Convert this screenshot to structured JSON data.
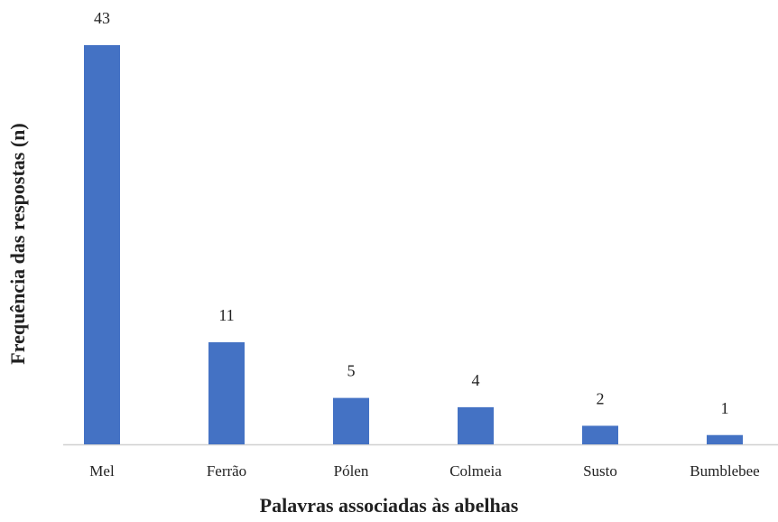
{
  "chart_data": {
    "type": "bar",
    "x_label": "Palavras associadas às abelhas",
    "y_label": "Frequência das respostas (n)",
    "categories": [
      "Mel",
      "Ferrão",
      "Pólen",
      "Colmeia",
      "Susto",
      "Bumblebee"
    ],
    "values": [
      43,
      11,
      5,
      4,
      2,
      1
    ],
    "color": "#4472c4",
    "ylim": [
      0,
      43
    ]
  }
}
